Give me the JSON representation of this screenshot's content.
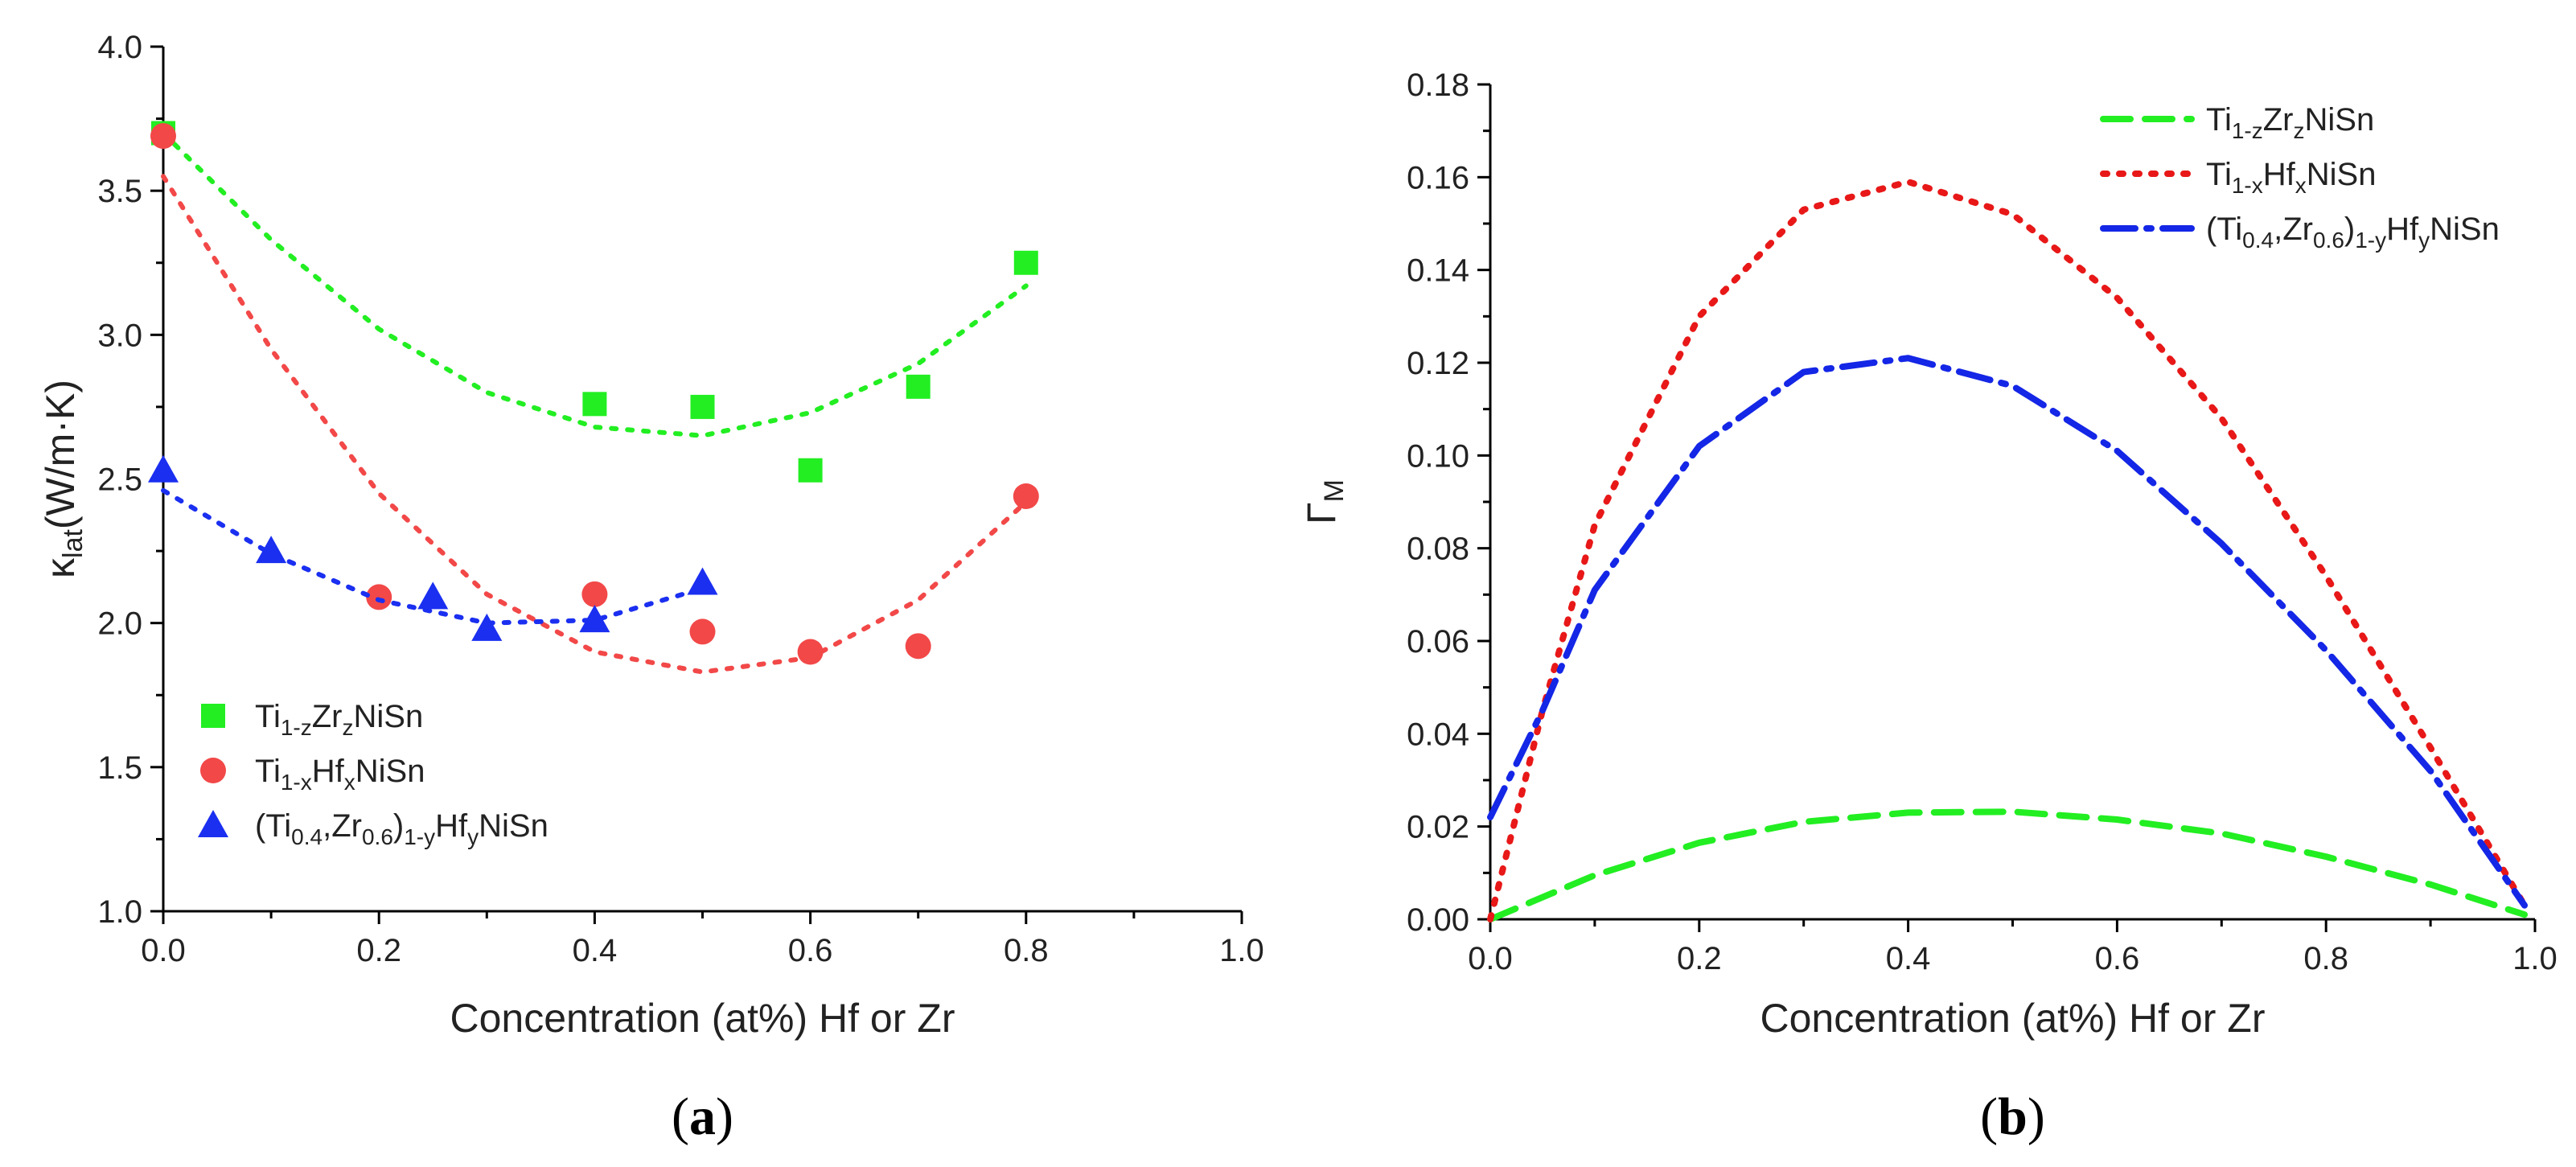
{
  "chart_data": [
    {
      "type": "scatter",
      "panel_label": "(a)",
      "panel_letter": "a",
      "title": "",
      "xlabel": "Concentration (at%) Hf or Zr",
      "ylabel": {
        "main": "κ",
        "sub": "lat",
        "rest": "(W/m·K)"
      },
      "xlim": [
        0.0,
        1.0
      ],
      "ylim": [
        1.0,
        4.0
      ],
      "xticks": [
        "0.0",
        "0.2",
        "0.4",
        "0.6",
        "0.8",
        "1.0"
      ],
      "yticks": [
        "1.0",
        "1.5",
        "2.0",
        "2.5",
        "3.0",
        "3.5",
        "4.0"
      ],
      "legend_position": "lower-left",
      "series": [
        {
          "name": "Ti1-zZrzNiSn",
          "legend": [
            [
              "Ti",
              ""
            ],
            [
              "1-z",
              "sub"
            ],
            [
              "Zr",
              ""
            ],
            [
              "z",
              "sub"
            ],
            [
              "NiSn",
              ""
            ]
          ],
          "marker": "square",
          "color": "#22ee22",
          "x": [
            0.0,
            0.4,
            0.5,
            0.6,
            0.7,
            0.8
          ],
          "y": [
            3.7,
            2.76,
            2.75,
            2.53,
            2.82,
            3.25
          ],
          "fit": {
            "x": [
              0.0,
              0.1,
              0.2,
              0.3,
              0.4,
              0.5,
              0.6,
              0.7,
              0.8
            ],
            "y": [
              3.7,
              3.33,
              3.02,
              2.8,
              2.68,
              2.65,
              2.73,
              2.9,
              3.17
            ]
          }
        },
        {
          "name": "Ti1-xHfxNiSn",
          "legend": [
            [
              "Ti",
              ""
            ],
            [
              "1-x",
              "sub"
            ],
            [
              "Hf",
              ""
            ],
            [
              "x",
              "sub"
            ],
            [
              "NiSn",
              ""
            ]
          ],
          "marker": "circle",
          "color": "#f24848",
          "x": [
            0.0,
            0.2,
            0.4,
            0.5,
            0.6,
            0.7,
            0.8
          ],
          "y": [
            3.69,
            2.09,
            2.1,
            1.97,
            1.9,
            1.92,
            2.44
          ],
          "fit": {
            "x": [
              0.0,
              0.1,
              0.2,
              0.3,
              0.4,
              0.5,
              0.6,
              0.7,
              0.8
            ],
            "y": [
              3.55,
              2.95,
              2.45,
              2.1,
              1.9,
              1.83,
              1.88,
              2.08,
              2.42
            ]
          }
        },
        {
          "name": "(Ti0.4,Zr0.6)1-yHfyNiSn",
          "legend": [
            [
              "(Ti",
              ""
            ],
            [
              "0.4",
              "sub"
            ],
            [
              ",Zr",
              ""
            ],
            [
              "0.6",
              "sub"
            ],
            [
              ")",
              ""
            ],
            [
              "1-y",
              "sub"
            ],
            [
              "Hf",
              ""
            ],
            [
              "y",
              "sub"
            ],
            [
              "NiSn",
              ""
            ]
          ],
          "marker": "triangle",
          "color": "#1a2ff0",
          "x": [
            0.0,
            0.1,
            0.25,
            0.3,
            0.4,
            0.5
          ],
          "y": [
            2.53,
            2.25,
            2.09,
            1.98,
            2.01,
            2.14
          ],
          "fit": {
            "x": [
              0.0,
              0.1,
              0.2,
              0.3,
              0.4,
              0.5
            ],
            "y": [
              2.46,
              2.24,
              2.08,
              2.0,
              2.01,
              2.12
            ]
          }
        }
      ]
    },
    {
      "type": "line",
      "panel_label": "(b)",
      "panel_letter": "b",
      "title": "",
      "xlabel": "Concentration (at%) Hf or Zr",
      "ylabel": {
        "main": "Γ",
        "sub": "M",
        "rest": ""
      },
      "xlim": [
        0.0,
        1.0
      ],
      "ylim": [
        0.0,
        0.18
      ],
      "xticks": [
        "0.0",
        "0.2",
        "0.4",
        "0.6",
        "0.8",
        "1.0"
      ],
      "yticks": [
        "0.00",
        "0.02",
        "0.04",
        "0.06",
        "0.08",
        "0.10",
        "0.12",
        "0.14",
        "0.16",
        "0.18"
      ],
      "legend_position": "top-right",
      "series": [
        {
          "name": "Ti1-zZrzNiSn",
          "legend": [
            [
              "Ti",
              ""
            ],
            [
              "1-z",
              "sub"
            ],
            [
              "Zr",
              ""
            ],
            [
              "z",
              "sub"
            ],
            [
              "NiSn",
              ""
            ]
          ],
          "style": "dash",
          "color": "#22ee22",
          "x": [
            0.0,
            0.1,
            0.2,
            0.3,
            0.4,
            0.5,
            0.6,
            0.7,
            0.8,
            0.9,
            0.99
          ],
          "y": [
            0.0,
            0.0095,
            0.0165,
            0.021,
            0.023,
            0.0232,
            0.0215,
            0.0185,
            0.0135,
            0.0075,
            0.001
          ]
        },
        {
          "name": "Ti1-xHfxNiSn",
          "legend": [
            [
              "Ti",
              ""
            ],
            [
              "1-x",
              "sub"
            ],
            [
              "Hf",
              ""
            ],
            [
              "x",
              "sub"
            ],
            [
              "NiSn",
              ""
            ]
          ],
          "style": "dot",
          "color": "#e81818",
          "x": [
            0.0,
            0.05,
            0.1,
            0.2,
            0.3,
            0.4,
            0.5,
            0.6,
            0.7,
            0.8,
            0.9,
            0.99
          ],
          "y": [
            0.0,
            0.045,
            0.085,
            0.13,
            0.153,
            0.159,
            0.152,
            0.134,
            0.108,
            0.074,
            0.037,
            0.003
          ]
        },
        {
          "name": "(Ti0.4,Zr0.6)1-yHfyNiSn",
          "legend": [
            [
              "(Ti",
              ""
            ],
            [
              "0.4",
              "sub"
            ],
            [
              ",Zr",
              ""
            ],
            [
              "0.6",
              "sub"
            ],
            [
              ")",
              ""
            ],
            [
              "1-y",
              "sub"
            ],
            [
              "Hf",
              ""
            ],
            [
              "y",
              "sub"
            ],
            [
              "NiSn",
              ""
            ]
          ],
          "style": "dashdot",
          "color": "#1426e6",
          "x": [
            0.0,
            0.05,
            0.1,
            0.2,
            0.3,
            0.4,
            0.5,
            0.6,
            0.7,
            0.8,
            0.9,
            0.99
          ],
          "y": [
            0.022,
            0.045,
            0.071,
            0.102,
            0.118,
            0.121,
            0.115,
            0.101,
            0.081,
            0.058,
            0.032,
            0.003
          ]
        }
      ]
    }
  ]
}
